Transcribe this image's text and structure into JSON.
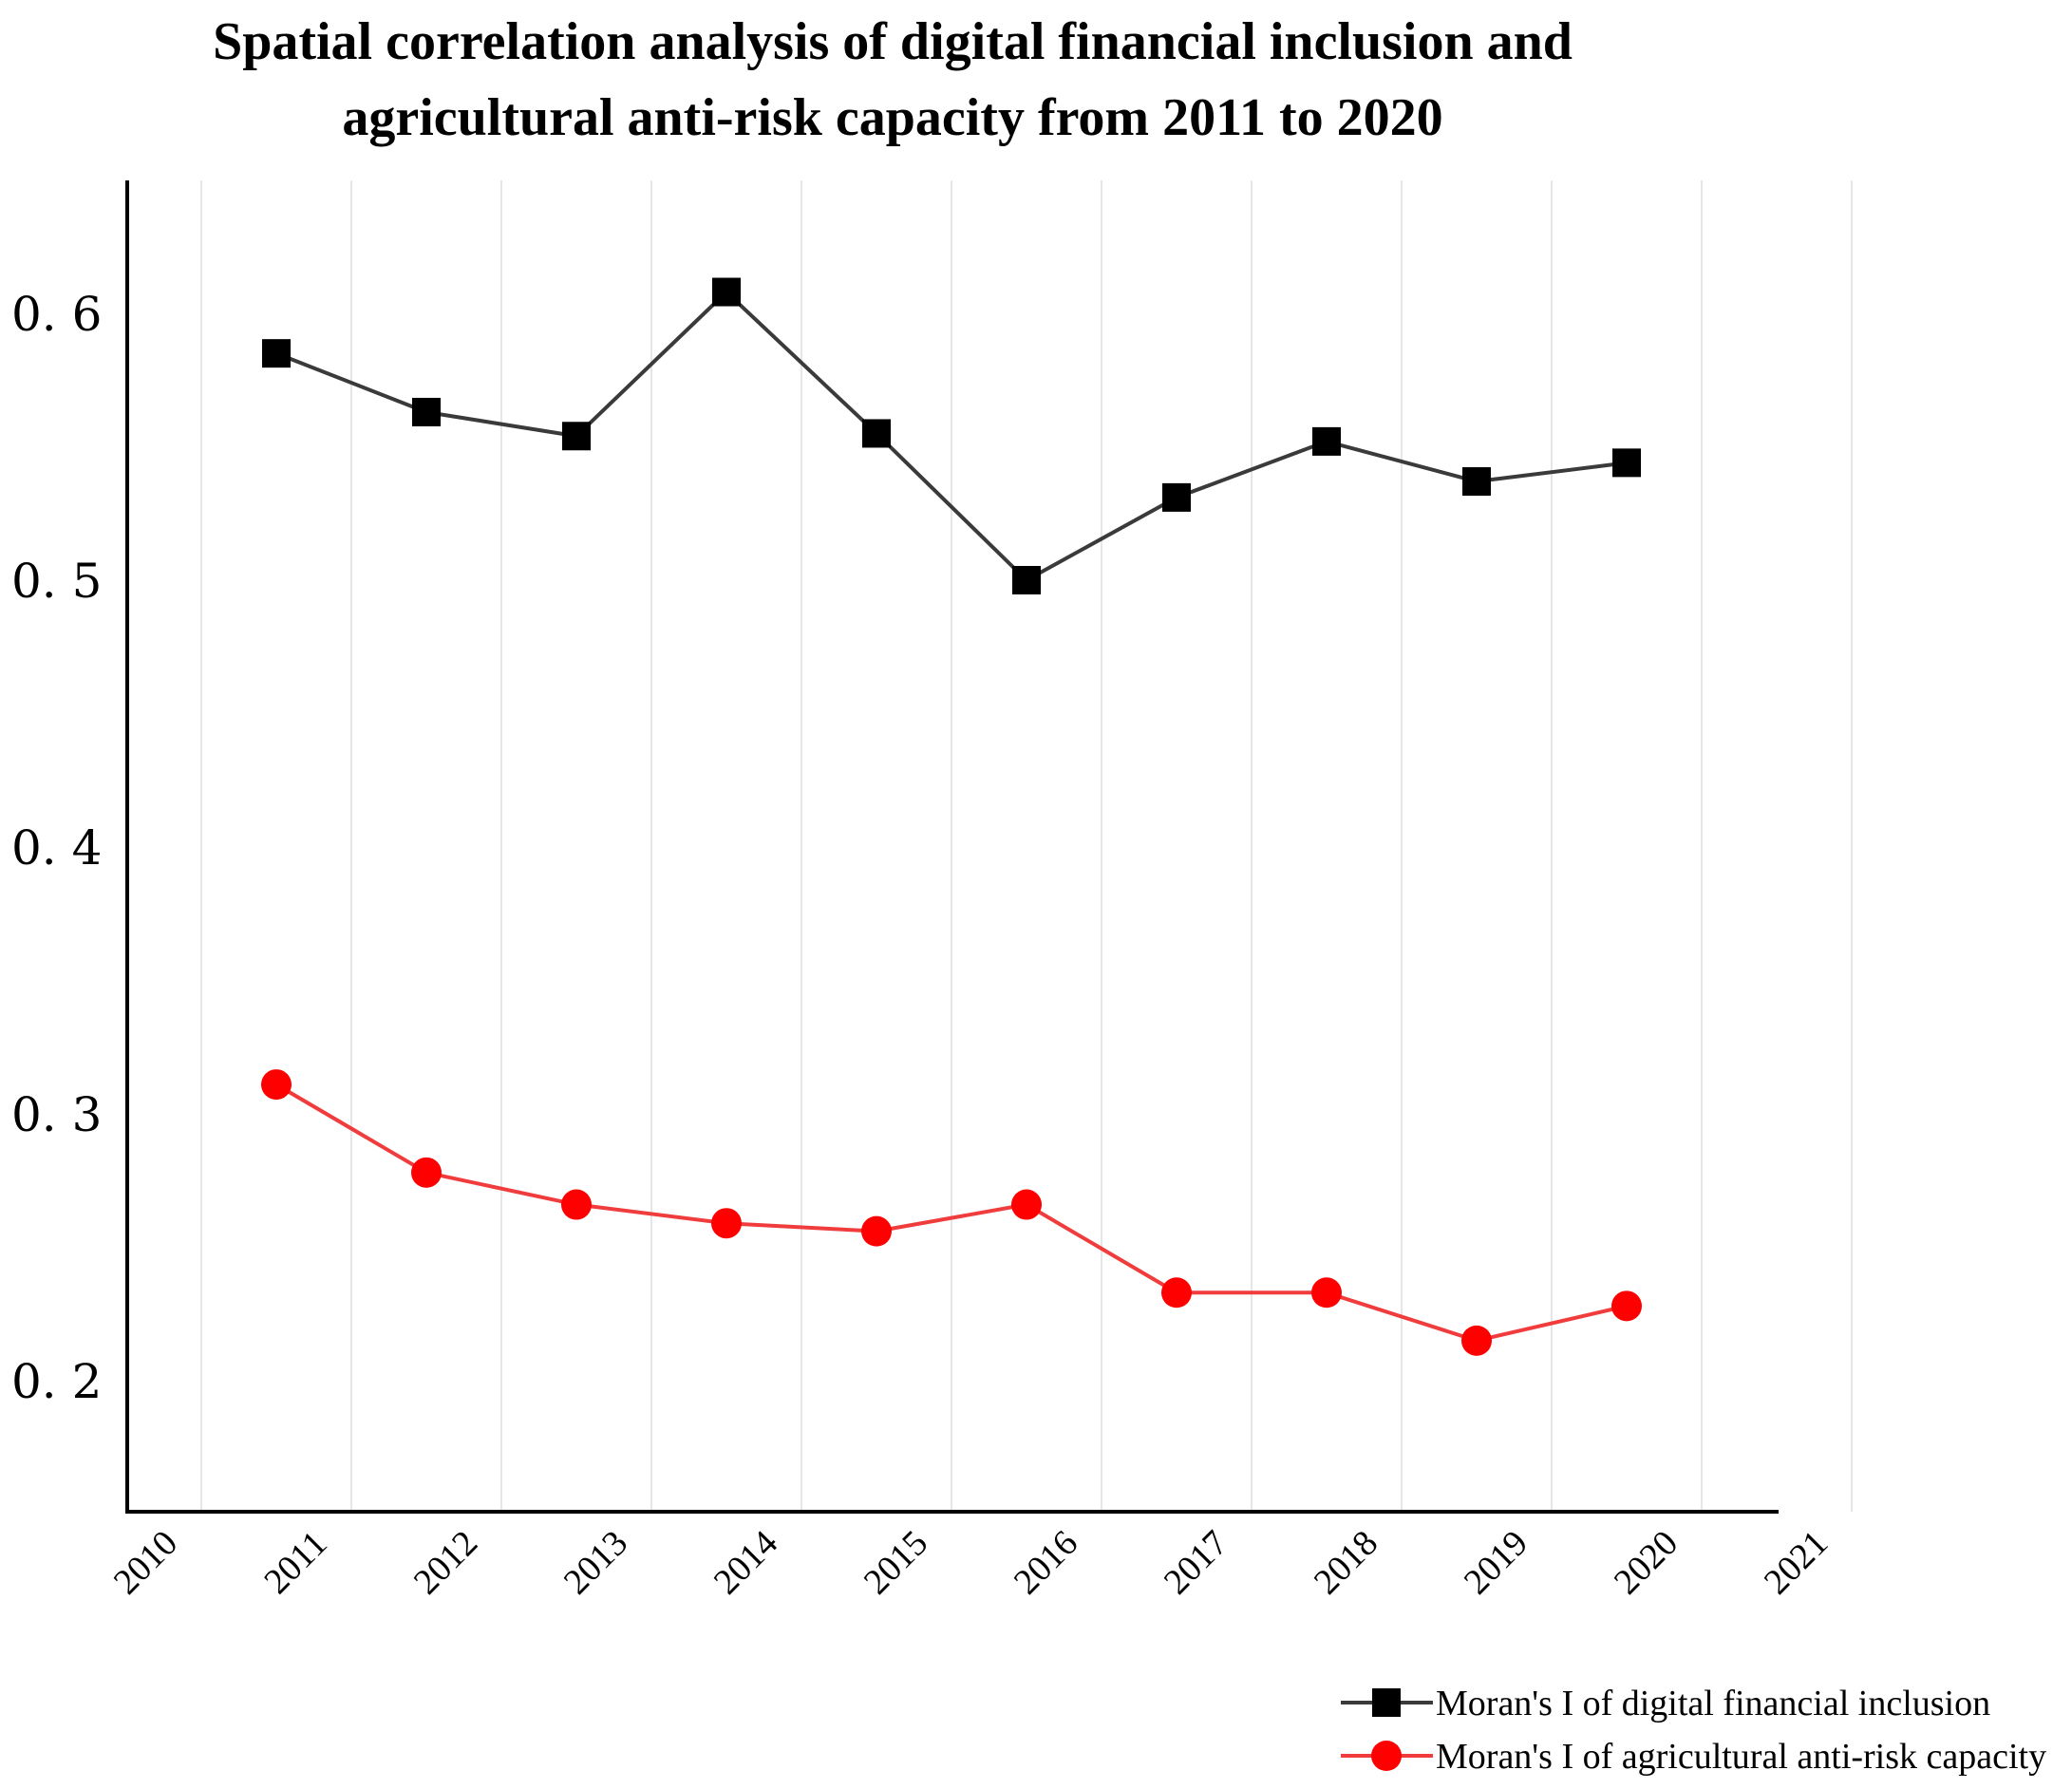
{
  "chart_data": {
    "type": "line",
    "title_lines": [
      "Spatial correlation analysis of digital financial inclusion and",
      "agricultural anti-risk capacity from 2011 to 2020"
    ],
    "xlabel": "",
    "ylabel": "",
    "x_ticks": [
      "2010",
      "2011",
      "2012",
      "2013",
      "2014",
      "2015",
      "2016",
      "2017",
      "2018",
      "2019",
      "2020",
      "2021"
    ],
    "y_ticks": [
      "0. 2",
      "0. 3",
      "0. 4",
      "0. 5",
      "0. 6"
    ],
    "y_tick_values": [
      0.2,
      0.3,
      0.4,
      0.5,
      0.6
    ],
    "ylim": [
      0.15,
      0.65
    ],
    "grid": "vertical",
    "legend_position": "bottom-right",
    "categories": [
      "2011",
      "2012",
      "2013",
      "2014",
      "2015",
      "2016",
      "2017",
      "2018",
      "2019",
      "2020"
    ],
    "series": [
      {
        "name": "Moran's I of digital financial inclusion",
        "color": "#3a3a3a",
        "marker_color": "#000000",
        "marker": "square",
        "values": [
          0.585,
          0.563,
          0.554,
          0.608,
          0.555,
          0.5,
          0.531,
          0.552,
          0.537,
          0.544
        ]
      },
      {
        "name": "Moran's I of agricultural anti-risk capacity",
        "color": "#f03c3c",
        "marker_color": "#ff0000",
        "marker": "circle",
        "values": [
          0.311,
          0.278,
          0.266,
          0.259,
          0.256,
          0.266,
          0.233,
          0.233,
          0.215,
          0.228
        ]
      }
    ]
  }
}
